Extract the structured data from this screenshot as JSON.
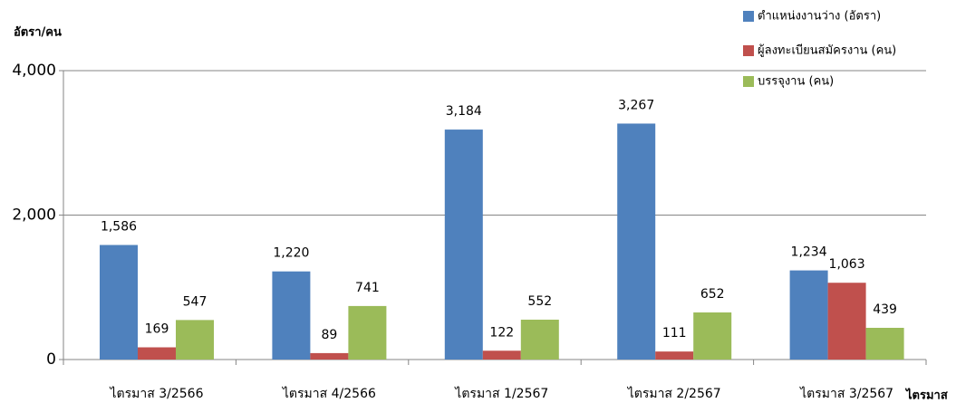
{
  "chart_data": {
    "type": "bar",
    "y_label": "อัตรา/คน",
    "x_label": "ไตรมาส",
    "categories": [
      "ไตรมาส 3/2566",
      "ไตรมาส 4/2566",
      "ไตรมาส 1/2567",
      "ไตรมาส 2/2567",
      "ไตรมาส 3/2567"
    ],
    "series": [
      {
        "name": "ตำแหน่งงานว่าง (อัตรา)",
        "color": "#4f81bd",
        "values": [
          1586,
          1220,
          3184,
          3267,
          1234
        ],
        "value_labels": [
          "1,586",
          "1,220",
          "3,184",
          "3,267",
          "1,234"
        ]
      },
      {
        "name": "ผู้ลงทะเบียนสมัครงาน (คน)",
        "color": "#c0504d",
        "values": [
          169,
          89,
          122,
          111,
          1063
        ],
        "value_labels": [
          "169",
          "89",
          "122",
          "111",
          "1,063"
        ]
      },
      {
        "name": "บรรจุงาน (คน)",
        "color": "#9bbb59",
        "values": [
          547,
          741,
          552,
          652,
          439
        ],
        "value_labels": [
          "547",
          "741",
          "552",
          "652",
          "439"
        ]
      }
    ],
    "ylim": [
      0,
      4000
    ],
    "yticks": [
      0,
      {
        "value": 2000,
        "label": "2,000"
      },
      {
        "value": 4000,
        "label": "4,000"
      }
    ],
    "grid": true,
    "legend": "top-right"
  }
}
